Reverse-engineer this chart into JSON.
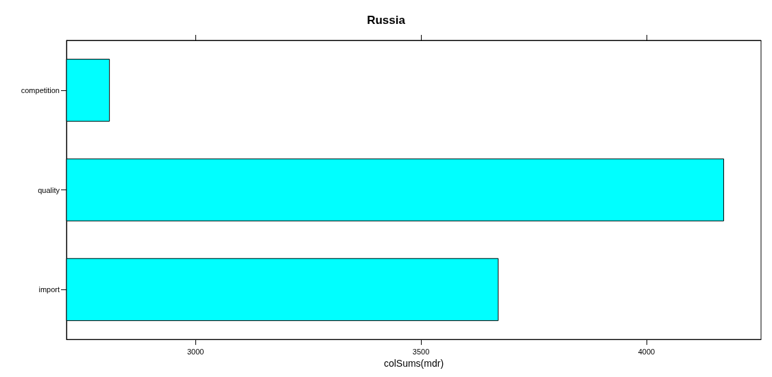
{
  "chart_data": {
    "type": "bar",
    "orientation": "horizontal",
    "title": "Russia",
    "xlabel": "colSums(mdr)",
    "categories": [
      "competition",
      "quality",
      "import"
    ],
    "values": [
      2810,
      4172,
      3672
    ],
    "color": "#00ffff",
    "xlim": [
      2714,
      4254
    ],
    "xticks": [
      3000,
      3500,
      4000
    ],
    "grid": false
  }
}
